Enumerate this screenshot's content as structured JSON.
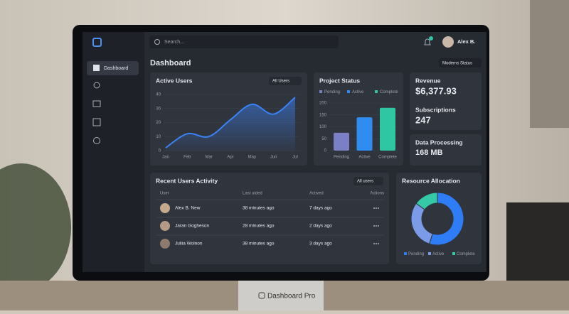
{
  "brand": "Dashboard Pro",
  "search_placeholder": "Search...",
  "user_name": "Alex B.",
  "nav": [
    "Dashboard"
  ],
  "page_title": "Dashboard",
  "status_filter": "Moderns Status",
  "stats": [
    {
      "label": "Revenue",
      "value": "$6,377.93"
    },
    {
      "label": "Subscriptions",
      "value": "247"
    },
    {
      "label": "Data Processing",
      "value": "168 MB"
    }
  ],
  "activity": {
    "title": "Recent Users Activity",
    "filter": "All users",
    "columns": [
      "User",
      "Last uided",
      "Actived",
      "Actions"
    ],
    "rows": [
      [
        "Alex B. New",
        "38 minutes ago",
        "7 days ago"
      ],
      [
        "Jaran Gogheson",
        "28 minutes ago",
        "2 days ago"
      ],
      [
        "Juliia Wolnon",
        "38 minutes ago",
        "3 days ago"
      ]
    ]
  },
  "chart_data": [
    {
      "type": "line",
      "title": "Active Users",
      "filter": "All Users",
      "categories": [
        "Jan",
        "Feb",
        "Mar",
        "Apr",
        "May",
        "Jun",
        "Jul"
      ],
      "values": [
        2,
        12,
        10,
        22,
        33,
        26,
        38
      ],
      "color": "#3b82f6",
      "ylim": [
        0,
        40
      ],
      "yticks": [
        0,
        10,
        20,
        30,
        40
      ],
      "grid": true
    },
    {
      "type": "bar",
      "title": "Project Status",
      "categories": [
        "Pending",
        "Active",
        "Complete"
      ],
      "values": [
        75,
        140,
        180
      ],
      "colors": [
        "#7b7fc4",
        "#2f8cf0",
        "#2fc7a3"
      ],
      "ylim": [
        0,
        200
      ],
      "yticks": [
        0,
        50,
        100,
        150,
        200
      ],
      "grid": true
    },
    {
      "type": "pie",
      "title": "Resource Allocation",
      "categories": [
        "Pending",
        "Active",
        "Complete"
      ],
      "values": [
        55,
        30,
        15
      ],
      "colors": [
        "#2e7cf6",
        "#7b9be8",
        "#35c9a8"
      ],
      "donut": true
    }
  ]
}
